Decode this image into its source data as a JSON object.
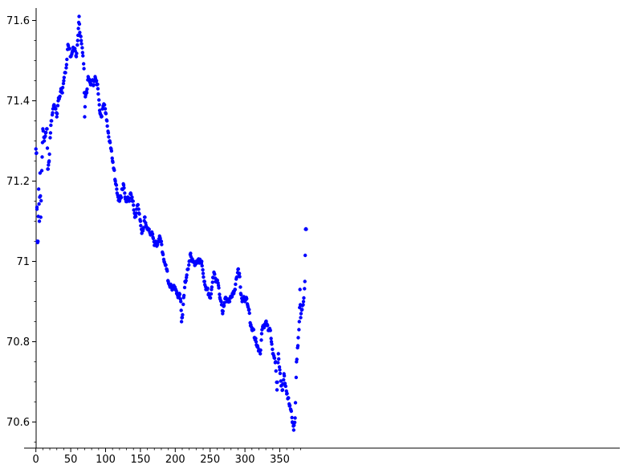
{
  "chart_data": {
    "type": "scatter",
    "title": "",
    "xlabel": "",
    "ylabel": "",
    "xlim": [
      0,
      390
    ],
    "ylim": [
      70.56,
      71.63
    ],
    "grid": false,
    "xticks": [
      0,
      50,
      100,
      150,
      200,
      250,
      300,
      350
    ],
    "xtick_labels": [
      "0",
      "50",
      "100",
      "150",
      "200",
      "250",
      "300",
      "350"
    ],
    "yticks": [
      70.6,
      70.8,
      71.0,
      71.2,
      71.4,
      71.6
    ],
    "ytick_labels": [
      "70.6",
      "70.8",
      "71",
      "71.2",
      "71.4",
      "71.6"
    ],
    "marker_color": "#0000ff",
    "anchors": [
      [
        0,
        71.28
      ],
      [
        1,
        71.27
      ],
      [
        1.5,
        71.13
      ],
      [
        2,
        71.05
      ],
      [
        3,
        71.05
      ],
      [
        4,
        71.18
      ],
      [
        5,
        71.1
      ],
      [
        6,
        71.22
      ],
      [
        7,
        71.11
      ],
      [
        9,
        71.26
      ],
      [
        10,
        71.33
      ],
      [
        12,
        71.3
      ],
      [
        14,
        71.32
      ],
      [
        16,
        71.33
      ],
      [
        17,
        71.23
      ],
      [
        18,
        71.24
      ],
      [
        19,
        71.25
      ],
      [
        21,
        71.32
      ],
      [
        22,
        71.35
      ],
      [
        24,
        71.37
      ],
      [
        26,
        71.39
      ],
      [
        28,
        71.38
      ],
      [
        30,
        71.36
      ],
      [
        32,
        71.4
      ],
      [
        34,
        71.41
      ],
      [
        36,
        71.43
      ],
      [
        38,
        71.42
      ],
      [
        40,
        71.45
      ],
      [
        42,
        71.47
      ],
      [
        44,
        71.49
      ],
      [
        46,
        71.54
      ],
      [
        48,
        71.53
      ],
      [
        50,
        71.51
      ],
      [
        52,
        71.52
      ],
      [
        54,
        71.53
      ],
      [
        56,
        71.53
      ],
      [
        58,
        71.51
      ],
      [
        60,
        71.55
      ],
      [
        61,
        71.58
      ],
      [
        62,
        71.61
      ],
      [
        63,
        71.57
      ],
      [
        65,
        71.55
      ],
      [
        67,
        71.52
      ],
      [
        69,
        71.48
      ],
      [
        70,
        71.36
      ],
      [
        71,
        71.41
      ],
      [
        73,
        71.42
      ],
      [
        75,
        71.46
      ],
      [
        77,
        71.45
      ],
      [
        79,
        71.44
      ],
      [
        81,
        71.45
      ],
      [
        83,
        71.44
      ],
      [
        85,
        71.46
      ],
      [
        87,
        71.45
      ],
      [
        89,
        71.43
      ],
      [
        91,
        71.39
      ],
      [
        92,
        71.37
      ],
      [
        94,
        71.36
      ],
      [
        96,
        71.38
      ],
      [
        98,
        71.39
      ],
      [
        100,
        71.37
      ],
      [
        102,
        71.35
      ],
      [
        104,
        71.32
      ],
      [
        106,
        71.3
      ],
      [
        108,
        71.28
      ],
      [
        110,
        71.25
      ],
      [
        112,
        71.23
      ],
      [
        114,
        71.2
      ],
      [
        116,
        71.18
      ],
      [
        118,
        71.16
      ],
      [
        120,
        71.15
      ],
      [
        122,
        71.16
      ],
      [
        124,
        71.18
      ],
      [
        126,
        71.19
      ],
      [
        128,
        71.16
      ],
      [
        130,
        71.15
      ],
      [
        132,
        71.16
      ],
      [
        134,
        71.15
      ],
      [
        136,
        71.17
      ],
      [
        138,
        71.16
      ],
      [
        140,
        71.14
      ],
      [
        142,
        71.11
      ],
      [
        144,
        71.12
      ],
      [
        146,
        71.14
      ],
      [
        148,
        71.12
      ],
      [
        150,
        71.1
      ],
      [
        152,
        71.07
      ],
      [
        154,
        71.08
      ],
      [
        156,
        71.11
      ],
      [
        158,
        71.09
      ],
      [
        160,
        71.08
      ],
      [
        162,
        71.08
      ],
      [
        164,
        71.07
      ],
      [
        166,
        71.07
      ],
      [
        168,
        71.06
      ],
      [
        170,
        71.04
      ],
      [
        172,
        71.05
      ],
      [
        174,
        71.04
      ],
      [
        176,
        71.05
      ],
      [
        178,
        71.06
      ],
      [
        180,
        71.05
      ],
      [
        182,
        71.02
      ],
      [
        184,
        71.0
      ],
      [
        186,
        70.99
      ],
      [
        188,
        70.98
      ],
      [
        190,
        70.95
      ],
      [
        192,
        70.94
      ],
      [
        194,
        70.94
      ],
      [
        196,
        70.93
      ],
      [
        198,
        70.94
      ],
      [
        200,
        70.93
      ],
      [
        202,
        70.92
      ],
      [
        204,
        70.91
      ],
      [
        206,
        70.92
      ],
      [
        208,
        70.9
      ],
      [
        209,
        70.85
      ],
      [
        210,
        70.86
      ],
      [
        212,
        70.91
      ],
      [
        214,
        70.95
      ],
      [
        216,
        70.96
      ],
      [
        218,
        70.98
      ],
      [
        220,
        71.0
      ],
      [
        222,
        71.02
      ],
      [
        224,
        71.0
      ],
      [
        226,
        71.0
      ],
      [
        228,
        70.99
      ],
      [
        230,
        71.0
      ],
      [
        232,
        71.0
      ],
      [
        234,
        71.0
      ],
      [
        236,
        71.0
      ],
      [
        238,
        71.0
      ],
      [
        240,
        70.97
      ],
      [
        242,
        70.95
      ],
      [
        244,
        70.93
      ],
      [
        246,
        70.93
      ],
      [
        248,
        70.92
      ],
      [
        250,
        70.91
      ],
      [
        252,
        70.93
      ],
      [
        254,
        70.96
      ],
      [
        256,
        70.97
      ],
      [
        258,
        70.95
      ],
      [
        260,
        70.95
      ],
      [
        262,
        70.94
      ],
      [
        264,
        70.91
      ],
      [
        266,
        70.9
      ],
      [
        268,
        70.87
      ],
      [
        270,
        70.89
      ],
      [
        272,
        70.91
      ],
      [
        274,
        70.9
      ],
      [
        276,
        70.9
      ],
      [
        278,
        70.9
      ],
      [
        280,
        70.91
      ],
      [
        282,
        70.92
      ],
      [
        284,
        70.92
      ],
      [
        286,
        70.93
      ],
      [
        288,
        70.96
      ],
      [
        290,
        70.98
      ],
      [
        292,
        70.97
      ],
      [
        294,
        70.92
      ],
      [
        296,
        70.9
      ],
      [
        298,
        70.91
      ],
      [
        300,
        70.9
      ],
      [
        302,
        70.91
      ],
      [
        304,
        70.89
      ],
      [
        306,
        70.88
      ],
      [
        308,
        70.84
      ],
      [
        310,
        70.83
      ],
      [
        312,
        70.83
      ],
      [
        314,
        70.81
      ],
      [
        316,
        70.8
      ],
      [
        318,
        70.79
      ],
      [
        320,
        70.78
      ],
      [
        322,
        70.77
      ],
      [
        324,
        70.82
      ],
      [
        326,
        70.84
      ],
      [
        328,
        70.84
      ],
      [
        330,
        70.85
      ],
      [
        332,
        70.84
      ],
      [
        334,
        70.83
      ],
      [
        336,
        70.83
      ],
      [
        338,
        70.8
      ],
      [
        340,
        70.77
      ],
      [
        342,
        70.76
      ],
      [
        344,
        70.75
      ],
      [
        346,
        70.68
      ],
      [
        348,
        70.77
      ],
      [
        350,
        70.73
      ],
      [
        352,
        70.69
      ],
      [
        354,
        70.68
      ],
      [
        356,
        70.72
      ],
      [
        358,
        70.69
      ],
      [
        360,
        70.67
      ],
      [
        362,
        70.66
      ],
      [
        364,
        70.64
      ],
      [
        366,
        70.63
      ],
      [
        368,
        70.6
      ],
      [
        370,
        70.58
      ],
      [
        372,
        70.61
      ],
      [
        374,
        70.75
      ],
      [
        376,
        70.79
      ],
      [
        378,
        70.85
      ],
      [
        379,
        70.93
      ],
      [
        380,
        70.86
      ],
      [
        382,
        70.88
      ],
      [
        384,
        70.9
      ],
      [
        386,
        70.95
      ],
      [
        387,
        71.08
      ],
      [
        388,
        71.08
      ]
    ]
  }
}
